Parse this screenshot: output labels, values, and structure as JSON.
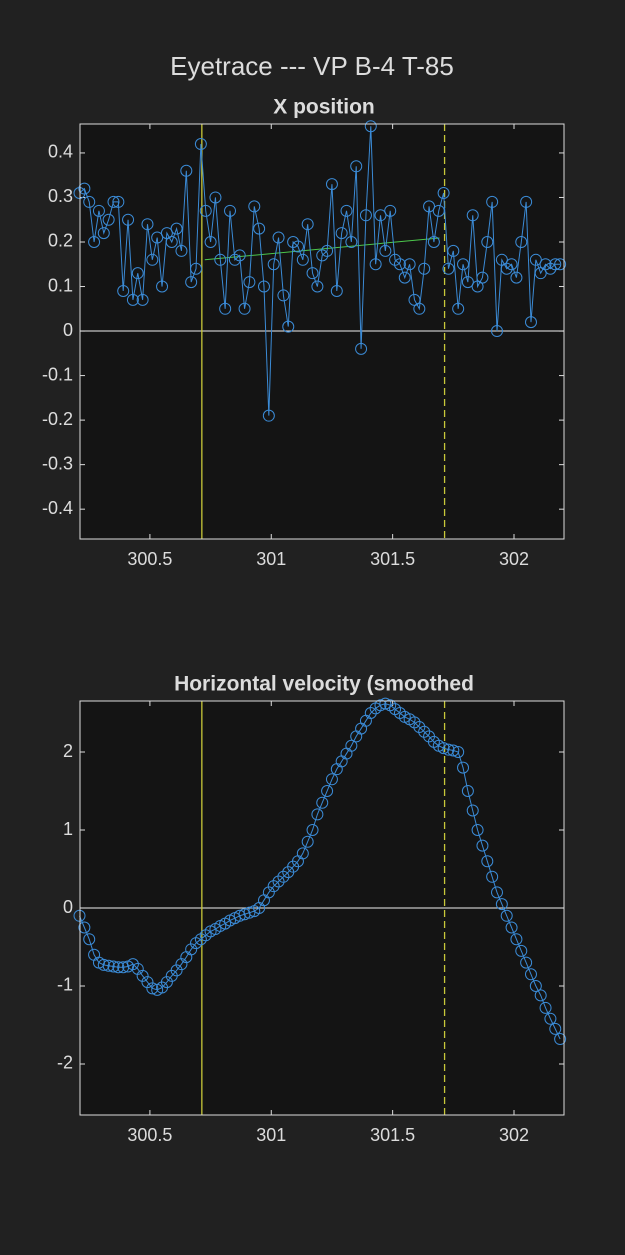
{
  "title": "Eyetrace --- VP B-4 T-85",
  "chart_data": [
    {
      "type": "line",
      "title": "X position",
      "color": "#3b8bd6",
      "marker": "circle",
      "zeroline": true,
      "xlim": [
        300.212,
        302.206
      ],
      "ylim": [
        -0.467,
        0.465
      ],
      "xticks": [
        300.5,
        301,
        301.5,
        302
      ],
      "yticks": [
        0.4,
        0.3,
        0.2,
        0.1,
        0,
        -0.1,
        -0.2,
        -0.3,
        -0.4
      ],
      "vlines": [
        {
          "x": 300.714,
          "color": "#c8c83a",
          "style": "solid"
        },
        {
          "x": 301.714,
          "color": "#c8c83a",
          "style": "dashed"
        }
      ],
      "segments": [
        {
          "x": [
            300.726,
            301.693
          ],
          "y": [
            0.16,
            0.209
          ],
          "color": "#4cc84c"
        }
      ],
      "x": [
        300.21,
        300.23,
        300.25,
        300.27,
        300.29,
        300.31,
        300.33,
        300.35,
        300.37,
        300.39,
        300.41,
        300.43,
        300.45,
        300.47,
        300.49,
        300.51,
        300.53,
        300.55,
        300.57,
        300.59,
        300.61,
        300.63,
        300.65,
        300.67,
        300.69,
        300.71,
        300.73,
        300.75,
        300.77,
        300.79,
        300.81,
        300.83,
        300.85,
        300.87,
        300.89,
        300.91,
        300.93,
        300.95,
        300.97,
        300.99,
        301.01,
        301.03,
        301.05,
        301.07,
        301.09,
        301.11,
        301.13,
        301.15,
        301.17,
        301.19,
        301.21,
        301.23,
        301.25,
        301.27,
        301.29,
        301.31,
        301.33,
        301.35,
        301.37,
        301.39,
        301.41,
        301.43,
        301.45,
        301.47,
        301.49,
        301.51,
        301.53,
        301.55,
        301.57,
        301.59,
        301.61,
        301.63,
        301.65,
        301.67,
        301.69,
        301.71,
        301.73,
        301.75,
        301.77,
        301.79,
        301.81,
        301.83,
        301.85,
        301.87,
        301.89,
        301.91,
        301.93,
        301.95,
        301.97,
        301.99,
        302.01,
        302.03,
        302.05,
        302.07,
        302.09,
        302.11,
        302.13,
        302.15,
        302.17,
        302.19
      ],
      "values": [
        0.31,
        0.32,
        0.29,
        0.2,
        0.27,
        0.22,
        0.25,
        0.29,
        0.29,
        0.09,
        0.25,
        0.07,
        0.13,
        0.07,
        0.24,
        0.16,
        0.21,
        0.1,
        0.22,
        0.2,
        0.23,
        0.18,
        0.36,
        0.11,
        0.14,
        0.42,
        0.27,
        0.2,
        0.3,
        0.16,
        0.05,
        0.27,
        0.16,
        0.17,
        0.05,
        0.11,
        0.28,
        0.23,
        0.1,
        -0.19,
        0.15,
        0.21,
        0.08,
        0.01,
        0.2,
        0.19,
        0.16,
        0.24,
        0.13,
        0.1,
        0.17,
        0.18,
        0.33,
        0.09,
        0.22,
        0.27,
        0.2,
        0.37,
        -0.04,
        0.26,
        0.46,
        0.15,
        0.26,
        0.18,
        0.27,
        0.16,
        0.15,
        0.12,
        0.15,
        0.07,
        0.05,
        0.14,
        0.28,
        0.2,
        0.27,
        0.31,
        0.14,
        0.18,
        0.05,
        0.15,
        0.11,
        0.26,
        0.1,
        0.12,
        0.2,
        0.29,
        0,
        0.16,
        0.14,
        0.15,
        0.12,
        0.2,
        0.29,
        0.02,
        0.16,
        0.13,
        0.15,
        0.14,
        0.15,
        0.15
      ]
    },
    {
      "type": "line",
      "title": "Horizontal velocity (smoothed",
      "color": "#3b8bd6",
      "marker": "circle",
      "zeroline": true,
      "xlim": [
        300.212,
        302.206
      ],
      "ylim": [
        -2.654,
        2.654
      ],
      "xticks": [
        300.5,
        301,
        301.5,
        302
      ],
      "yticks": [
        2,
        1,
        0,
        -1,
        -2
      ],
      "vlines": [
        {
          "x": 300.714,
          "color": "#c8c83a",
          "style": "solid"
        },
        {
          "x": 301.714,
          "color": "#c8c83a",
          "style": "dashed"
        }
      ],
      "x": [
        300.21,
        300.23,
        300.25,
        300.27,
        300.29,
        300.31,
        300.33,
        300.35,
        300.37,
        300.39,
        300.41,
        300.43,
        300.45,
        300.47,
        300.49,
        300.51,
        300.53,
        300.55,
        300.57,
        300.59,
        300.61,
        300.63,
        300.65,
        300.67,
        300.69,
        300.71,
        300.73,
        300.75,
        300.77,
        300.79,
        300.81,
        300.83,
        300.85,
        300.87,
        300.89,
        300.91,
        300.93,
        300.95,
        300.97,
        300.99,
        301.01,
        301.03,
        301.05,
        301.07,
        301.09,
        301.11,
        301.13,
        301.15,
        301.17,
        301.19,
        301.21,
        301.23,
        301.25,
        301.27,
        301.29,
        301.31,
        301.33,
        301.35,
        301.37,
        301.39,
        301.41,
        301.43,
        301.45,
        301.47,
        301.49,
        301.51,
        301.53,
        301.55,
        301.57,
        301.59,
        301.61,
        301.63,
        301.65,
        301.67,
        301.69,
        301.71,
        301.73,
        301.75,
        301.77,
        301.79,
        301.81,
        301.83,
        301.85,
        301.87,
        301.89,
        301.91,
        301.93,
        301.95,
        301.97,
        301.99,
        302.01,
        302.03,
        302.05,
        302.07,
        302.09,
        302.11,
        302.13,
        302.15,
        302.17,
        302.19
      ],
      "values": [
        -0.1,
        -0.25,
        -0.4,
        -0.6,
        -0.7,
        -0.73,
        -0.74,
        -0.75,
        -0.76,
        -0.76,
        -0.75,
        -0.72,
        -0.78,
        -0.87,
        -0.95,
        -1.03,
        -1.05,
        -1.02,
        -0.95,
        -0.87,
        -0.8,
        -0.72,
        -0.63,
        -0.53,
        -0.45,
        -0.4,
        -0.35,
        -0.3,
        -0.27,
        -0.23,
        -0.2,
        -0.16,
        -0.13,
        -0.1,
        -0.08,
        -0.06,
        -0.04,
        0,
        0.1,
        0.2,
        0.28,
        0.34,
        0.4,
        0.46,
        0.53,
        0.6,
        0.7,
        0.85,
        1,
        1.2,
        1.35,
        1.5,
        1.65,
        1.78,
        1.88,
        1.98,
        2.08,
        2.2,
        2.3,
        2.4,
        2.5,
        2.56,
        2.6,
        2.62,
        2.6,
        2.55,
        2.5,
        2.45,
        2.42,
        2.38,
        2.32,
        2.26,
        2.2,
        2.13,
        2.08,
        2.05,
        2.03,
        2.02,
        2,
        1.8,
        1.5,
        1.25,
        1,
        0.8,
        0.6,
        0.4,
        0.2,
        0.05,
        -0.1,
        -0.25,
        -0.4,
        -0.55,
        -0.7,
        -0.85,
        -1,
        -1.12,
        -1.28,
        -1.42,
        -1.55,
        -1.68
      ]
    }
  ]
}
